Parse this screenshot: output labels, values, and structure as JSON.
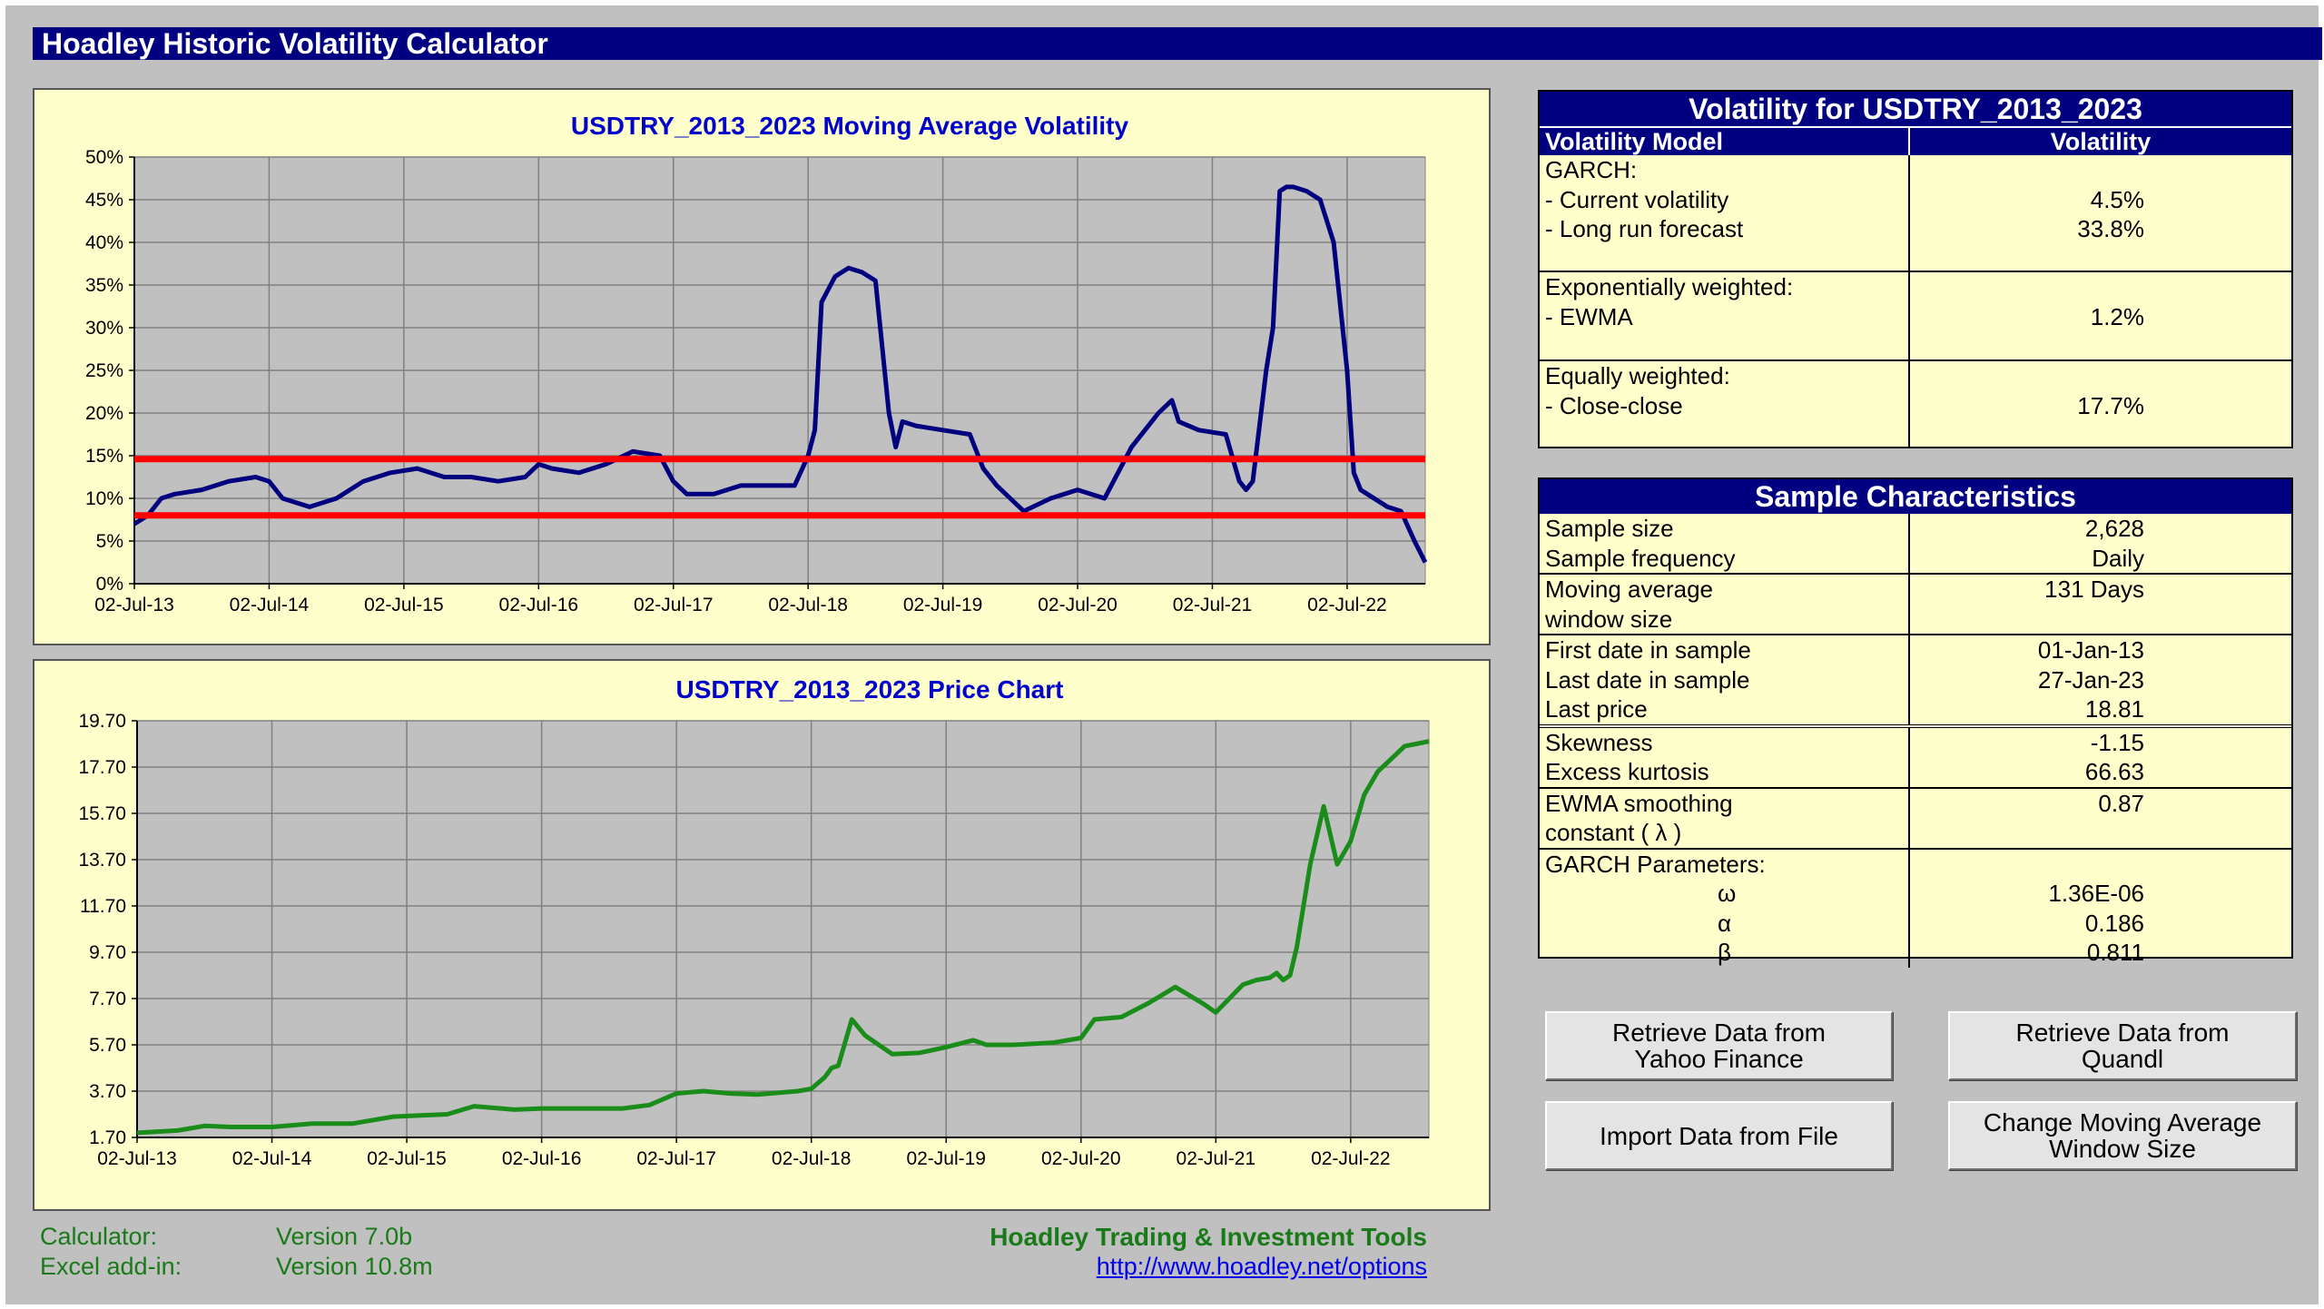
{
  "app": {
    "title": "Hoadley Historic Volatility Calculator"
  },
  "volatility_chart": {
    "chart_data": {
      "type": "line",
      "title": "USDTRY_2013_2023 Moving Average Volatility",
      "x_tick_labels": [
        "02-Jul-13",
        "02-Jul-14",
        "02-Jul-15",
        "02-Jul-16",
        "02-Jul-17",
        "02-Jul-18",
        "02-Jul-19",
        "02-Jul-20",
        "02-Jul-21",
        "02-Jul-22"
      ],
      "y_tick_labels": [
        "0%",
        "5%",
        "10%",
        "15%",
        "20%",
        "25%",
        "30%",
        "35%",
        "40%",
        "45%",
        "50%"
      ],
      "ylim": [
        0,
        0.5
      ],
      "xlim": [
        0,
        9.58
      ],
      "grid": true,
      "series": [
        {
          "color": "#00007f",
          "x": [
            0,
            0.1,
            0.2,
            0.3,
            0.5,
            0.7,
            0.9,
            1.0,
            1.1,
            1.3,
            1.5,
            1.7,
            1.9,
            2.1,
            2.3,
            2.5,
            2.7,
            2.9,
            3.0,
            3.1,
            3.3,
            3.5,
            3.7,
            3.9,
            4.0,
            4.1,
            4.3,
            4.5,
            4.7,
            4.9,
            5.0,
            5.05,
            5.1,
            5.2,
            5.3,
            5.4,
            5.5,
            5.6,
            5.65,
            5.7,
            5.8,
            6.0,
            6.2,
            6.3,
            6.4,
            6.5,
            6.6,
            6.8,
            7.0,
            7.2,
            7.4,
            7.6,
            7.7,
            7.75,
            7.9,
            8.1,
            8.2,
            8.25,
            8.3,
            8.4,
            8.45,
            8.5,
            8.55,
            8.6,
            8.7,
            8.8,
            8.9,
            9.0,
            9.05,
            9.1,
            9.3,
            9.4,
            9.5,
            9.58
          ],
          "y": [
            0.07,
            0.08,
            0.1,
            0.105,
            0.11,
            0.12,
            0.125,
            0.12,
            0.1,
            0.09,
            0.1,
            0.12,
            0.13,
            0.135,
            0.125,
            0.125,
            0.12,
            0.125,
            0.14,
            0.135,
            0.13,
            0.14,
            0.155,
            0.15,
            0.12,
            0.105,
            0.105,
            0.115,
            0.115,
            0.115,
            0.15,
            0.18,
            0.33,
            0.36,
            0.37,
            0.365,
            0.355,
            0.2,
            0.16,
            0.19,
            0.185,
            0.18,
            0.175,
            0.135,
            0.115,
            0.1,
            0.085,
            0.1,
            0.11,
            0.1,
            0.16,
            0.2,
            0.215,
            0.19,
            0.18,
            0.175,
            0.12,
            0.11,
            0.12,
            0.25,
            0.3,
            0.46,
            0.465,
            0.465,
            0.46,
            0.45,
            0.4,
            0.25,
            0.13,
            0.11,
            0.09,
            0.085,
            0.05,
            0.025
          ]
        },
        {
          "color": "#ff0000",
          "x": [
            0,
            9.58
          ],
          "y": [
            0.146,
            0.146
          ]
        },
        {
          "color": "#ff0000",
          "x": [
            0,
            9.58
          ],
          "y": [
            0.08,
            0.08
          ]
        }
      ]
    }
  },
  "price_chart": {
    "chart_data": {
      "type": "line",
      "title": "USDTRY_2013_2023 Price Chart",
      "x_tick_labels": [
        "02-Jul-13",
        "02-Jul-14",
        "02-Jul-15",
        "02-Jul-16",
        "02-Jul-17",
        "02-Jul-18",
        "02-Jul-19",
        "02-Jul-20",
        "02-Jul-21",
        "02-Jul-22"
      ],
      "y_tick_labels": [
        "1.70",
        "3.70",
        "5.70",
        "7.70",
        "9.70",
        "11.70",
        "13.70",
        "15.70",
        "17.70",
        "19.70"
      ],
      "ylim": [
        1.7,
        19.7
      ],
      "xlim": [
        0,
        9.58
      ],
      "grid": true,
      "series": [
        {
          "color": "#1a8c1a",
          "x": [
            0,
            0.3,
            0.5,
            0.7,
            1.0,
            1.3,
            1.6,
            1.9,
            2.1,
            2.3,
            2.5,
            2.8,
            3.0,
            3.3,
            3.6,
            3.8,
            4.0,
            4.2,
            4.4,
            4.6,
            4.9,
            5.0,
            5.1,
            5.15,
            5.2,
            5.3,
            5.4,
            5.6,
            5.8,
            6.0,
            6.2,
            6.3,
            6.5,
            6.8,
            7.0,
            7.1,
            7.3,
            7.5,
            7.7,
            7.9,
            8.0,
            8.2,
            8.3,
            8.4,
            8.45,
            8.5,
            8.55,
            8.6,
            8.7,
            8.8,
            8.9,
            9.0,
            9.1,
            9.2,
            9.4,
            9.58
          ],
          "y": [
            1.9,
            2.0,
            2.2,
            2.15,
            2.15,
            2.3,
            2.3,
            2.6,
            2.65,
            2.7,
            3.05,
            2.9,
            2.95,
            2.95,
            2.95,
            3.1,
            3.6,
            3.7,
            3.6,
            3.55,
            3.7,
            3.8,
            4.3,
            4.7,
            4.8,
            6.8,
            6.1,
            5.3,
            5.35,
            5.6,
            5.9,
            5.7,
            5.7,
            5.8,
            6.0,
            6.8,
            6.9,
            7.5,
            8.2,
            7.5,
            7.1,
            8.3,
            8.5,
            8.6,
            8.8,
            8.5,
            8.7,
            9.9,
            13.5,
            16.0,
            13.5,
            14.5,
            16.5,
            17.5,
            18.6,
            18.81
          ]
        }
      ]
    }
  },
  "vol_table": {
    "title": "Volatility for USDTRY_2013_2023",
    "col1": "Volatility Model",
    "col2": "Volatility",
    "garch_head": "GARCH:",
    "garch_current_label": "- Current volatility",
    "garch_current_value": "4.5%",
    "garch_long_label": "- Long run forecast",
    "garch_long_value": "33.8%",
    "exp_head": "Exponentially weighted:",
    "ewma_label": "- EWMA",
    "ewma_value": "1.2%",
    "eq_head": "Equally weighted:",
    "close_label": "- Close-close",
    "close_value": "17.7%"
  },
  "sample_table": {
    "title": "Sample Characteristics",
    "sample_size_label": "Sample size",
    "sample_size_value": "2,628",
    "frequency_label": "Sample frequency",
    "frequency_value": "Daily",
    "mavg_label1": "Moving average",
    "mavg_label2": "window size",
    "mavg_value": "131 Days",
    "first_date_label": "First date in sample",
    "first_date_value": "01-Jan-13",
    "last_date_label": "Last date in sample",
    "last_date_value": "27-Jan-23",
    "last_price_label": "Last price",
    "last_price_value": "18.81",
    "skew_label": "Skewness",
    "skew_value": "-1.15",
    "kurt_label": "Excess kurtosis",
    "kurt_value": "66.63",
    "ewma_smooth_label1": "EWMA smoothing",
    "ewma_smooth_label2": "constant ( λ )",
    "ewma_smooth_value": "0.87",
    "garch_params_label": "GARCH Parameters:",
    "omega_label": "ω",
    "omega_value": "1.36E-06",
    "alpha_label": "α",
    "alpha_value": "0.186",
    "beta_label": "β",
    "beta_value": "0.811"
  },
  "buttons": {
    "yahoo": "Retrieve Data from Yahoo Finance",
    "quandl": "Retrieve Data from Quandl",
    "import_file": "Import Data from File",
    "change_window": "Change Moving Average Window Size"
  },
  "footer": {
    "calculator_label": "Calculator:",
    "calculator_version": "Version 7.0b",
    "addin_label": "Excel add-in:",
    "addin_version": "Version 10.8m",
    "brand": "Hoadley Trading & Investment Tools",
    "link": "http://www.hoadley.net/options"
  }
}
